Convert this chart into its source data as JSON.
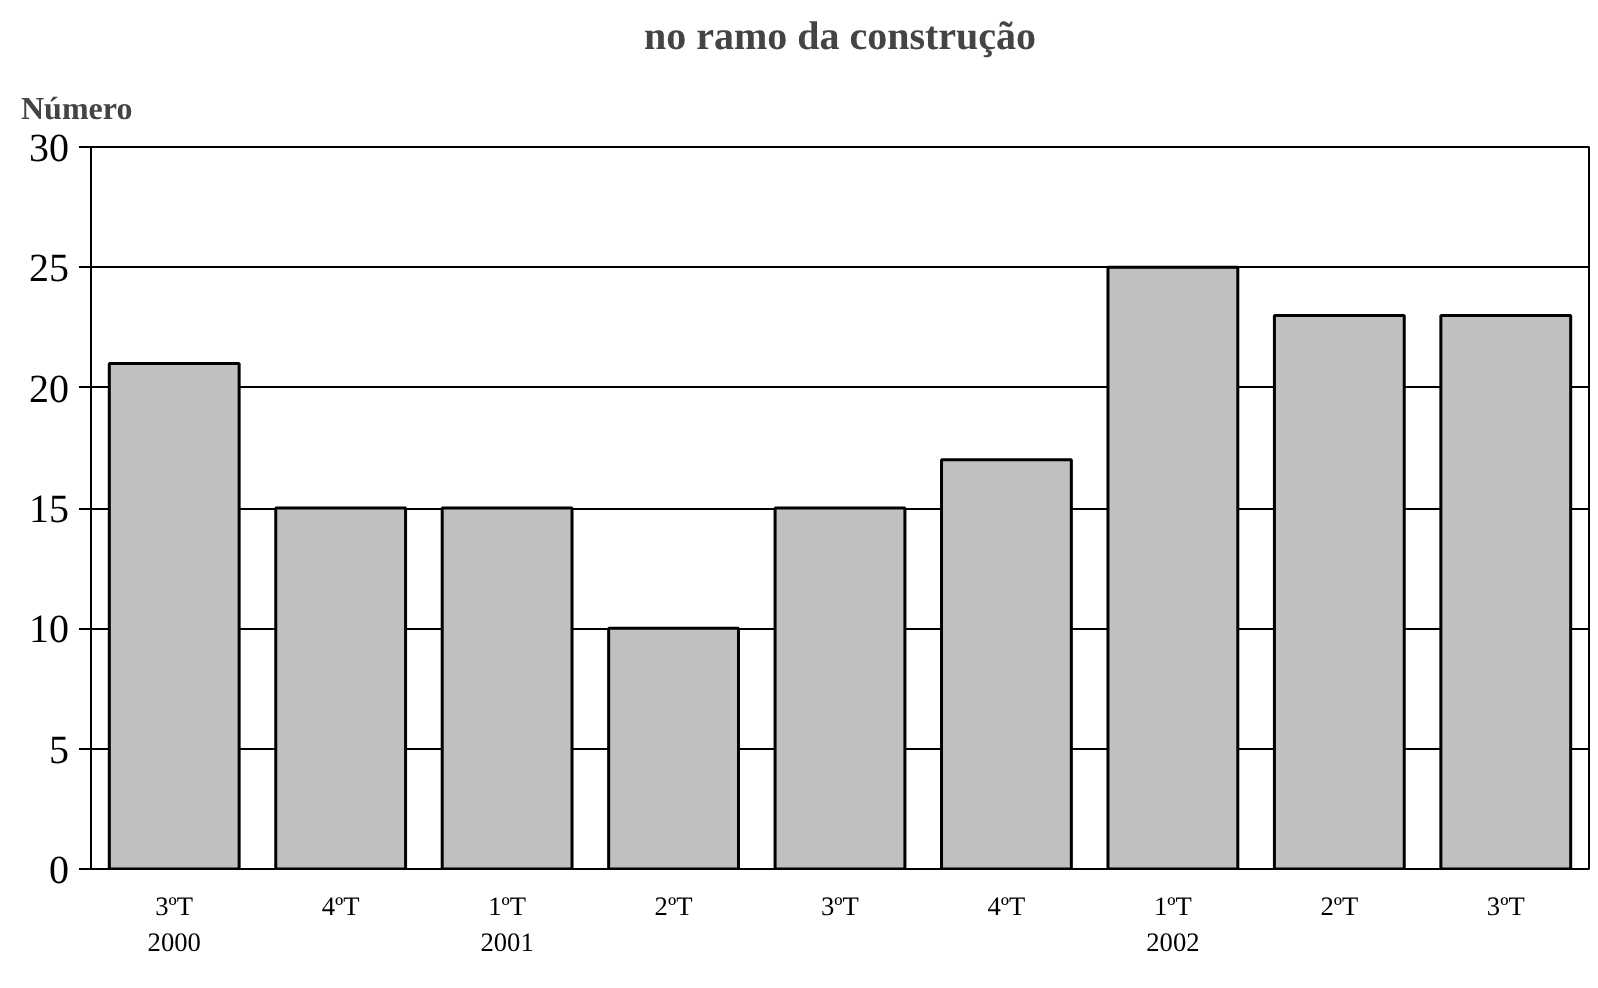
{
  "chart_data": {
    "type": "bar",
    "title": "no ramo da construção",
    "ylabel": "Número",
    "categories": [
      "3ºT\n2000",
      "4ºT",
      "1ºT\n2001",
      "2ºT",
      "3ºT",
      "4ºT",
      "1ºT\n2002",
      "2ºT",
      "3ºT"
    ],
    "values": [
      21,
      15,
      15,
      10,
      15,
      17,
      25,
      23,
      23
    ],
    "color": "#c0c0c0",
    "ylim": [
      0,
      30
    ],
    "yticks": [
      0,
      5,
      10,
      15,
      20,
      25,
      30
    ],
    "grid": "y"
  }
}
